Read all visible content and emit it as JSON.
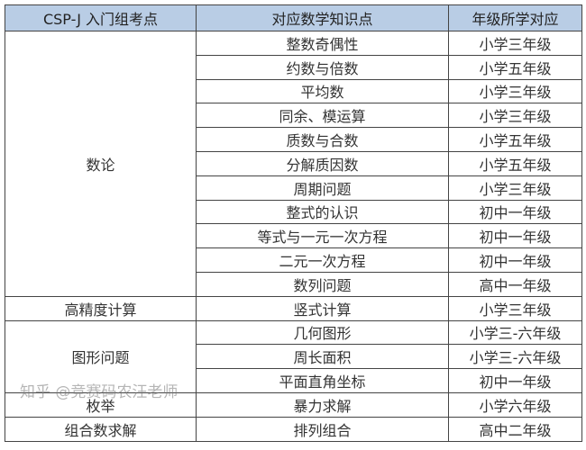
{
  "headers": [
    "CSP-J 入门组考点",
    "对应数学知识点",
    "年级所学对应"
  ],
  "groups": [
    {
      "topic": "数论",
      "rows": [
        [
          "整数奇偶性",
          "小学三年级"
        ],
        [
          "约数与倍数",
          "小学五年级"
        ],
        [
          "平均数",
          "小学三年级"
        ],
        [
          "同余、模运算",
          "小学三年级"
        ],
        [
          "质数与合数",
          "小学五年级"
        ],
        [
          "分解质因数",
          "小学五年级"
        ],
        [
          "周期问题",
          "小学三年级"
        ],
        [
          "整式的认识",
          "初中一年级"
        ],
        [
          "等式与一元一次方程",
          "初中一年级"
        ],
        [
          "二元一次方程",
          "初中一年级"
        ],
        [
          "数列问题",
          "高中一年级"
        ]
      ]
    },
    {
      "topic": "高精度计算",
      "rows": [
        [
          "竖式计算",
          "小学三年级"
        ]
      ]
    },
    {
      "topic": "图形问题",
      "rows": [
        [
          "几何图形",
          "小学三-六年级"
        ],
        [
          "周长面积",
          "小学三-六年级"
        ],
        [
          "平面直角坐标",
          "初中一年级"
        ]
      ]
    },
    {
      "topic": "枚举",
      "rows": [
        [
          "暴力求解",
          "小学六年级"
        ]
      ]
    },
    {
      "topic": "组合数求解",
      "rows": [
        [
          "排列组合",
          "高中二年级"
        ]
      ]
    }
  ],
  "watermark": "知乎 @竞赛码农汪老师"
}
